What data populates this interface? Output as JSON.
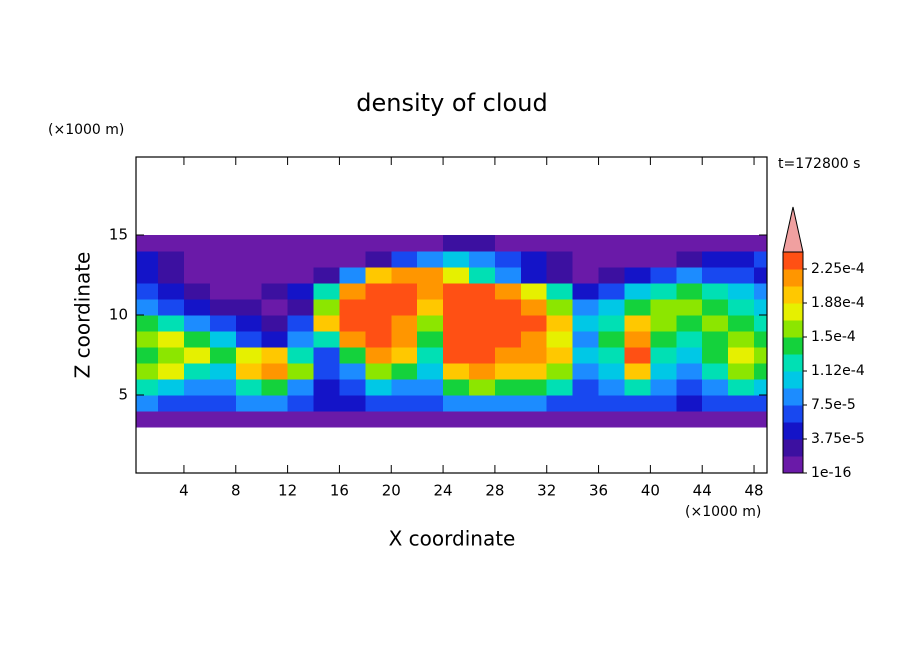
{
  "chart_data": {
    "type": "contour",
    "title": "density of cloud",
    "x_label": "X coordinate",
    "y_label": "Z coordinate",
    "x_unit": "(×1000 m)",
    "y_unit": "(×1000 m)",
    "time_label": "t=172800 s",
    "xlim": [
      0.3,
      49
    ],
    "ylim": [
      0,
      20
    ],
    "xticks": [
      4,
      8,
      12,
      16,
      20,
      24,
      28,
      32,
      36,
      40,
      44,
      48
    ],
    "yticks": [
      5,
      10,
      15
    ],
    "zlim": [
      1e-16,
      0.00024375
    ],
    "zticks": [
      1e-16,
      {
        "value": 3.75e-05,
        "label": "3.75e-5"
      },
      {
        "value": 7.5e-05,
        "label": "7.5e-5"
      },
      {
        "value": 0.0001125,
        "label": "1.12e-4"
      },
      {
        "value": 0.00015,
        "label": "1.5e-4"
      },
      {
        "value": 0.0001875,
        "label": "1.88e-4"
      },
      {
        "value": 0.000225,
        "label": "2.25e-4"
      }
    ],
    "colors": [
      "#6a1aa8",
      "#3c10a0",
      "#1414c8",
      "#1848f0",
      "#1c8cff",
      "#00c8e6",
      "#00e0b4",
      "#14d23c",
      "#8ce600",
      "#e6f000",
      "#ffc800",
      "#ff9600",
      "#ff5014"
    ],
    "extend_color": "#f0a0a0",
    "x": [
      1,
      3,
      5,
      7,
      9,
      11,
      13,
      15,
      17,
      19,
      21,
      23,
      25,
      27,
      29,
      31,
      33,
      35,
      37,
      39,
      41,
      43,
      45,
      47,
      49
    ],
    "y": [
      3.5,
      4.5,
      5.5,
      6.5,
      7.5,
      8.5,
      9.5,
      10.5,
      11.5,
      12.5,
      13.5,
      14.5
    ],
    "z": [
      [
        5e-06,
        5e-06,
        5e-06,
        5e-06,
        5e-06,
        5e-06,
        5e-06,
        5e-06,
        5e-06,
        5e-06,
        5e-06,
        5e-06,
        5e-06,
        5e-06,
        5e-06,
        5e-06,
        5e-06,
        5e-06,
        5e-06,
        5e-06,
        5e-06,
        5e-06,
        5e-06,
        5e-06,
        5e-06
      ],
      [
        8.4e-05,
        6.6e-05,
        6.6e-05,
        6.6e-05,
        8.4e-05,
        8.4e-05,
        6.6e-05,
        4.7e-05,
        4.7e-05,
        6.6e-05,
        6.6e-05,
        6.6e-05,
        8.4e-05,
        8.4e-05,
        8.4e-05,
        8.4e-05,
        6.6e-05,
        6.6e-05,
        6.6e-05,
        6.6e-05,
        6.6e-05,
        4.7e-05,
        6.6e-05,
        6.6e-05,
        6.6e-05
      ],
      [
        0.000122,
        0.000103,
        8.4e-05,
        8.4e-05,
        0.000122,
        0.000141,
        8.4e-05,
        4.7e-05,
        6.6e-05,
        0.000103,
        8.4e-05,
        8.4e-05,
        0.000141,
        0.000159,
        0.000141,
        0.000141,
        0.000122,
        6.6e-05,
        8.4e-05,
        0.000122,
        8.4e-05,
        6.6e-05,
        8.4e-05,
        0.000122,
        0.000103
      ],
      [
        0.000159,
        0.000178,
        0.000122,
        0.000103,
        0.000197,
        0.000216,
        0.000159,
        6.6e-05,
        8.4e-05,
        0.000159,
        0.000141,
        0.000103,
        0.000197,
        0.000216,
        0.000197,
        0.000197,
        0.000159,
        8.4e-05,
        0.000103,
        0.000197,
        0.000103,
        8.4e-05,
        0.000122,
        0.000159,
        0.000141
      ],
      [
        0.000141,
        0.000159,
        0.000178,
        0.000141,
        0.000178,
        0.000197,
        0.000122,
        6.6e-05,
        0.000141,
        0.000216,
        0.000197,
        0.000122,
        0.000234,
        0.000234,
        0.000216,
        0.000216,
        0.000197,
        0.000103,
        0.000122,
        0.000234,
        0.000122,
        0.000103,
        0.000141,
        0.000178,
        0.000159
      ],
      [
        0.000159,
        0.000178,
        0.000141,
        0.000103,
        6.6e-05,
        4.7e-05,
        8.4e-05,
        0.000122,
        0.000216,
        0.000234,
        0.000216,
        0.000141,
        0.000234,
        0.000234,
        0.000234,
        0.000216,
        0.000178,
        8.4e-05,
        0.000141,
        0.000216,
        0.000141,
        0.000122,
        0.000141,
        0.000159,
        0.000141
      ],
      [
        0.000141,
        0.000122,
        8.4e-05,
        6.6e-05,
        4.7e-05,
        2.8e-05,
        6.6e-05,
        0.000197,
        0.000234,
        0.000234,
        0.000216,
        0.000159,
        0.000234,
        0.000234,
        0.000234,
        0.000234,
        0.000197,
        0.000103,
        0.000122,
        0.000197,
        0.000159,
        0.000141,
        0.000159,
        0.000141,
        0.000122
      ],
      [
        8.4e-05,
        6.6e-05,
        4.7e-05,
        2.8e-05,
        2.8e-05,
        5e-06,
        2.8e-05,
        0.000159,
        0.000234,
        0.000234,
        0.000234,
        0.000197,
        0.000234,
        0.000234,
        0.000234,
        0.000216,
        0.000159,
        8.4e-05,
        0.000103,
        0.000141,
        0.000159,
        0.000159,
        0.000141,
        0.000122,
        0.000103
      ],
      [
        6.6e-05,
        4.7e-05,
        2.8e-05,
        5e-06,
        5e-06,
        2.8e-05,
        4.7e-05,
        0.000122,
        0.000216,
        0.000234,
        0.000234,
        0.000216,
        0.000234,
        0.000234,
        0.000216,
        0.000178,
        0.000122,
        4.7e-05,
        6.6e-05,
        0.000103,
        0.000122,
        0.000141,
        0.000122,
        0.000103,
        8.4e-05
      ],
      [
        4.7e-05,
        2.8e-05,
        5e-06,
        5e-06,
        5e-06,
        5e-06,
        5e-06,
        2.8e-05,
        8.4e-05,
        0.000197,
        0.000216,
        0.000216,
        0.000178,
        0.000122,
        8.4e-05,
        4.7e-05,
        2.8e-05,
        5e-06,
        2.8e-05,
        4.7e-05,
        6.6e-05,
        8.4e-05,
        6.6e-05,
        6.6e-05,
        4.7e-05
      ],
      [
        4.7e-05,
        2.8e-05,
        5e-06,
        5e-06,
        5e-06,
        5e-06,
        5e-06,
        5e-06,
        5e-06,
        2.8e-05,
        6.6e-05,
        8.4e-05,
        0.000103,
        8.4e-05,
        6.6e-05,
        4.7e-05,
        2.8e-05,
        5e-06,
        5e-06,
        5e-06,
        5e-06,
        2.8e-05,
        4.7e-05,
        4.7e-05,
        6.6e-05
      ],
      [
        5e-06,
        5e-06,
        5e-06,
        5e-06,
        5e-06,
        5e-06,
        5e-06,
        5e-06,
        5e-06,
        5e-06,
        5e-06,
        5e-06,
        2.8e-05,
        2.8e-05,
        5e-06,
        5e-06,
        5e-06,
        5e-06,
        5e-06,
        5e-06,
        5e-06,
        5e-06,
        5e-06,
        5e-06,
        5e-06
      ]
    ]
  }
}
